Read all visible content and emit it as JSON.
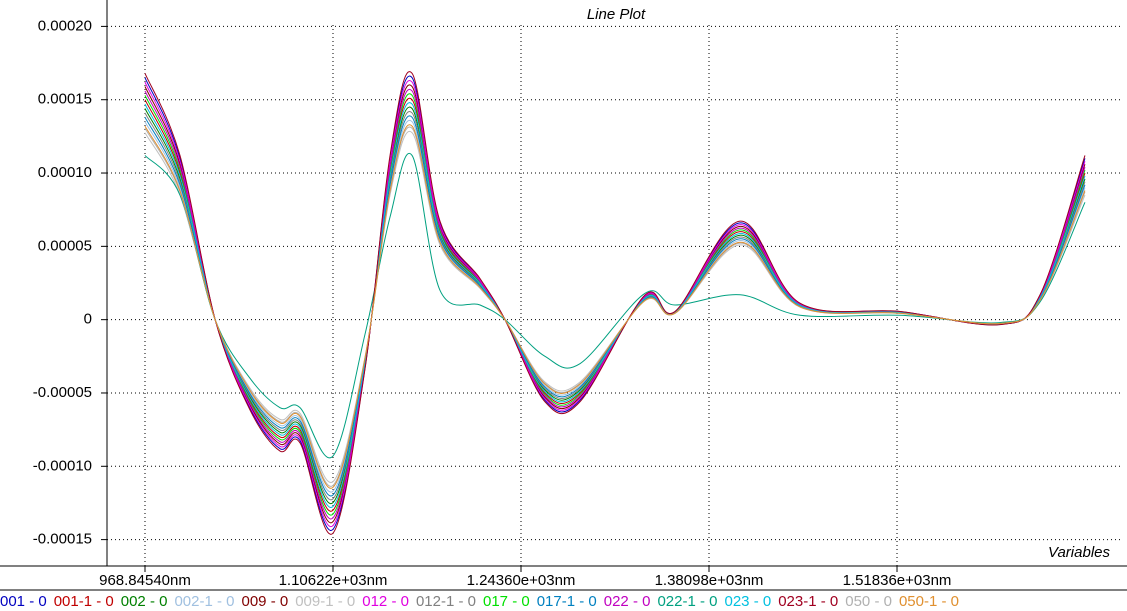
{
  "chart_data": {
    "type": "line",
    "title": "Line Plot",
    "x_label": "Variables",
    "x": [
      968.8454,
      994.4,
      1020.1,
      1045.6,
      1067.5,
      1082.1,
      1106.2,
      1129.6,
      1147.9,
      1164.0,
      1184.4,
      1213.7,
      1231.9,
      1261.1,
      1286.7,
      1334.2,
      1356.2,
      1403.7,
      1447.5,
      1520.6,
      1593.6,
      1622.8,
      1655.7
    ],
    "xlim": [
      941.08,
      1681.3
    ],
    "xticks": [
      {
        "value": 968.8454,
        "label": "968.84540nm"
      },
      {
        "value": 1106.22,
        "label": "1.10622e+03nm"
      },
      {
        "value": 1243.6,
        "label": "1.24360e+03nm"
      },
      {
        "value": 1380.98,
        "label": "1.38098e+03nm"
      },
      {
        "value": 1518.36,
        "label": "1.51836e+03nm"
      }
    ],
    "ylim": [
      -0.000168,
      0.000218
    ],
    "yticks": [
      {
        "value": 0.0002,
        "label": "0.00020"
      },
      0.00015,
      {
        "value": 0.0001,
        "label": "0.00010"
      },
      5e-05,
      0,
      -5e-05,
      {
        "value": -0.0001,
        "label": "-0.00010"
      },
      -0.00015
    ],
    "grid": true,
    "series": [
      {
        "name": "001 - 0",
        "color": "#0000c0",
        "values": [
          0.000165,
          0.00011,
          0,
          -6.05e-05,
          -8.8e-05,
          -8.25e-05,
          -0.000143,
          -3.3e-05,
          0.00011,
          0.000165,
          6.6e-05,
          2.75e-05,
          0,
          -5.5e-05,
          -5.5e-05,
          1.65e-05,
          5.5e-06,
          6.6e-05,
          1.1e-05,
          5.5e-06,
          -3.3e-06,
          1.65e-05,
          0.00011
        ]
      },
      {
        "name": "001-1 - 0",
        "color": "#c00000",
        "values": [
          0.00015,
          0.0001,
          0,
          -5.5e-05,
          -8e-05,
          -7.5e-05,
          -0.00013,
          -3e-05,
          0.0001,
          0.00015,
          6e-05,
          2.5e-05,
          0,
          -5e-05,
          -5e-05,
          1.5e-05,
          5e-06,
          6e-05,
          1e-05,
          5e-06,
          -3e-06,
          1.5e-05,
          0.0001
        ]
      },
      {
        "name": "002 - 0",
        "color": "#008000",
        "values": [
          0.000144,
          9.6e-05,
          0,
          -5.28e-05,
          -7.68e-05,
          -7.2e-05,
          -0.0001248,
          -2.88e-05,
          9.6e-05,
          0.000144,
          5.76e-05,
          2.4e-05,
          0,
          -4.8e-05,
          -4.8e-05,
          1.44e-05,
          4.8e-06,
          5.76e-05,
          9.6e-06,
          4.8e-06,
          -2.9e-06,
          1.44e-05,
          9.6e-05
        ]
      },
      {
        "name": "002-1 - 0",
        "color": "#a0c0e0",
        "values": [
          0.000135,
          9e-05,
          0,
          -4.95e-05,
          -7.2e-05,
          -6.75e-05,
          -0.000117,
          -2.7e-05,
          9e-05,
          0.000135,
          5.4e-05,
          2.25e-05,
          0,
          -4.5e-05,
          -4.5e-05,
          1.35e-05,
          4.5e-06,
          5.4e-05,
          9e-06,
          4.5e-06,
          -2.7e-06,
          1.35e-05,
          9e-05
        ]
      },
      {
        "name": "009 - 0",
        "color": "#800000",
        "values": [
          0.000159,
          0.000106,
          0,
          -5.83e-05,
          -8.48e-05,
          -7.95e-05,
          -0.0001378,
          -3.18e-05,
          0.000106,
          0.000159,
          6.36e-05,
          2.65e-05,
          0,
          -5.3e-05,
          -5.3e-05,
          1.59e-05,
          5.3e-06,
          6.36e-05,
          1.06e-05,
          5.3e-06,
          -3.2e-06,
          1.59e-05,
          0.000106
        ]
      },
      {
        "name": "009-1 - 0",
        "color": "#c0c0c0",
        "values": [
          0.0001275,
          8.5e-05,
          0,
          -4.68e-05,
          -6.8e-05,
          -6.38e-05,
          -0.0001105,
          -2.55e-05,
          8.5e-05,
          0.0001275,
          5.1e-05,
          2.13e-05,
          0,
          -4.25e-05,
          -4.25e-05,
          1.28e-05,
          4.3e-06,
          5.1e-05,
          8.5e-06,
          4.3e-06,
          -2.6e-06,
          1.28e-05,
          8.5e-05
        ]
      },
      {
        "name": "012 - 0",
        "color": "#e000e0",
        "values": [
          0.000162,
          0.000108,
          0,
          -5.94e-05,
          -8.64e-05,
          -8.1e-05,
          -0.0001404,
          -3.24e-05,
          0.000108,
          0.000162,
          6.48e-05,
          2.7e-05,
          0,
          -5.4e-05,
          -5.4e-05,
          1.62e-05,
          5.4e-06,
          6.48e-05,
          1.08e-05,
          5.4e-06,
          -3.2e-06,
          1.62e-05,
          0.000108
        ]
      },
      {
        "name": "012-1 - 0",
        "color": "#808080",
        "values": [
          0.000141,
          9.4e-05,
          0,
          -5.17e-05,
          -7.52e-05,
          -7.05e-05,
          -0.0001222,
          -2.82e-05,
          9.4e-05,
          0.000141,
          5.64e-05,
          2.35e-05,
          0,
          -4.7e-05,
          -4.7e-05,
          1.41e-05,
          4.7e-06,
          5.64e-05,
          9.4e-06,
          4.7e-06,
          -2.8e-06,
          1.41e-05,
          9.4e-05
        ]
      },
      {
        "name": "017 - 0",
        "color": "#00e000",
        "values": [
          0.000153,
          0.000102,
          0,
          -5.61e-05,
          -8.16e-05,
          -7.65e-05,
          -0.0001326,
          -3.06e-05,
          0.000102,
          0.000153,
          6.12e-05,
          2.55e-05,
          0,
          -5.1e-05,
          -5.1e-05,
          1.53e-05,
          5.1e-06,
          6.12e-05,
          1.02e-05,
          5.1e-06,
          -3.1e-06,
          1.53e-05,
          0.000102
        ]
      },
      {
        "name": "017-1 - 0",
        "color": "#0080c0",
        "values": [
          0.000138,
          9.2e-05,
          0,
          -5.06e-05,
          -7.36e-05,
          -6.9e-05,
          -0.0001196,
          -2.76e-05,
          9.2e-05,
          0.000138,
          5.52e-05,
          2.3e-05,
          0,
          -4.6e-05,
          -4.6e-05,
          1.38e-05,
          4.6e-06,
          5.52e-05,
          9.2e-06,
          4.6e-06,
          -2.8e-06,
          1.38e-05,
          9.2e-05
        ]
      },
      {
        "name": "022 - 0",
        "color": "#c000c0",
        "values": [
          0.000156,
          0.000104,
          0,
          -5.72e-05,
          -8.32e-05,
          -7.8e-05,
          -0.0001352,
          -3.12e-05,
          0.000104,
          0.000156,
          6.24e-05,
          2.6e-05,
          0,
          -5.2e-05,
          -5.2e-05,
          1.56e-05,
          5.2e-06,
          6.24e-05,
          1.04e-05,
          5.2e-06,
          -3.1e-06,
          1.56e-05,
          0.000104
        ]
      },
      {
        "name": "022-1 - 0",
        "color": "#00a080",
        "values": [
          0.000112,
          8.5e-05,
          0,
          -4e-05,
          -6e-05,
          -6e-05,
          -9.3e-05,
          -1e-05,
          7e-05,
          0.000112,
          2e-05,
          1e-05,
          0,
          -2.5e-05,
          -3e-05,
          1.8e-05,
          1e-05,
          1.7e-05,
          3e-06,
          3e-06,
          -2e-06,
          1.2e-05,
          8e-05
        ]
      },
      {
        "name": "023 - 0",
        "color": "#00c0e0",
        "values": [
          0.000147,
          9.8e-05,
          0,
          -5.39e-05,
          -7.84e-05,
          -7.35e-05,
          -0.0001274,
          -2.94e-05,
          9.8e-05,
          0.000147,
          5.88e-05,
          2.45e-05,
          0,
          -4.9e-05,
          -4.9e-05,
          1.47e-05,
          4.9e-06,
          5.88e-05,
          9.8e-06,
          4.9e-06,
          -2.9e-06,
          1.47e-05,
          9.8e-05
        ]
      },
      {
        "name": "023-1 - 0",
        "color": "#a00020",
        "values": [
          0.000168,
          0.000112,
          0,
          -6.16e-05,
          -8.96e-05,
          -8.4e-05,
          -0.0001456,
          -3.36e-05,
          0.000112,
          0.000168,
          6.72e-05,
          2.8e-05,
          0,
          -5.6e-05,
          -5.6e-05,
          1.68e-05,
          5.6e-06,
          6.72e-05,
          1.12e-05,
          5.6e-06,
          -3.4e-06,
          1.68e-05,
          0.000112
        ]
      },
      {
        "name": "050 - 0",
        "color": "#b0b0b0",
        "values": [
          0.0001305,
          8.7e-05,
          0,
          -4.79e-05,
          -6.96e-05,
          -6.53e-05,
          -0.0001131,
          -2.61e-05,
          8.7e-05,
          0.0001305,
          5.22e-05,
          2.18e-05,
          0,
          -4.35e-05,
          -4.35e-05,
          1.31e-05,
          4.4e-06,
          5.22e-05,
          8.7e-06,
          4.4e-06,
          -2.6e-06,
          1.31e-05,
          8.7e-05
        ]
      },
      {
        "name": "050-1 - 0",
        "color": "#e09030",
        "values": [
          0.000132,
          8.8e-05,
          0,
          -4.84e-05,
          -7.04e-05,
          -6.6e-05,
          -0.0001144,
          -2.64e-05,
          8.8e-05,
          0.000132,
          5.28e-05,
          2.2e-05,
          0,
          -4.4e-05,
          -4.4e-05,
          1.32e-05,
          4.4e-06,
          5.28e-05,
          8.8e-06,
          4.4e-06,
          -2.6e-06,
          1.32e-05,
          8.8e-05
        ]
      }
    ]
  }
}
